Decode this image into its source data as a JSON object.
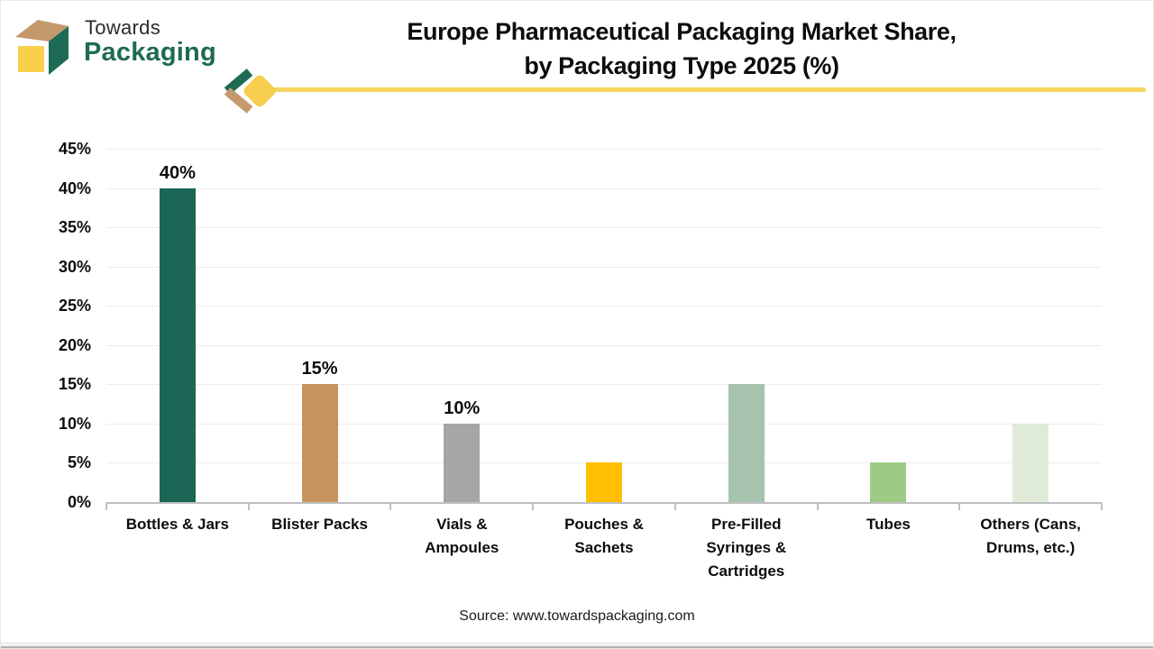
{
  "brand": {
    "name_top": "Towards",
    "name_bottom": "Packaging",
    "logo_colors": {
      "top_face": "#C49A6C",
      "side_face": "#1D6B54",
      "front_face": "#F9CF4C"
    }
  },
  "header": {
    "title_line1": "Europe Pharmaceutical Packaging Market Share,",
    "title_line2": "by Packaging Type 2025 (%)",
    "accent_line_color": "#F5D55C"
  },
  "chart_data": {
    "type": "bar",
    "title": "Europe Pharmaceutical Packaging Market Share, by Packaging Type 2025 (%)",
    "categories": [
      "Bottles & Jars",
      "Blister Packs",
      "Vials & Ampoules",
      "Pouches & Sachets",
      "Pre-Filled Syringes & Cartridges",
      "Tubes",
      "Others (Cans, Drums, etc.)"
    ],
    "values": [
      40,
      15,
      10,
      5,
      15,
      5,
      10
    ],
    "bar_colors": [
      "#1B6655",
      "#C7945F",
      "#A6A6A6",
      "#FFC002",
      "#A6C3AD",
      "#9DCB83",
      "#DFEBD7"
    ],
    "bar_labels": [
      "40%",
      "15%",
      "10%",
      "",
      "",
      "",
      ""
    ],
    "xlabel": "",
    "ylabel": "",
    "ylim": [
      0,
      45
    ],
    "ytick_step": 5,
    "ytick_labels": [
      "0%",
      "5%",
      "10%",
      "15%",
      "20%",
      "25%",
      "30%",
      "35%",
      "40%",
      "45%"
    ],
    "grid": "horizontal",
    "legend": "none"
  },
  "footer": {
    "source": "Source: www.towardspackaging.com"
  }
}
